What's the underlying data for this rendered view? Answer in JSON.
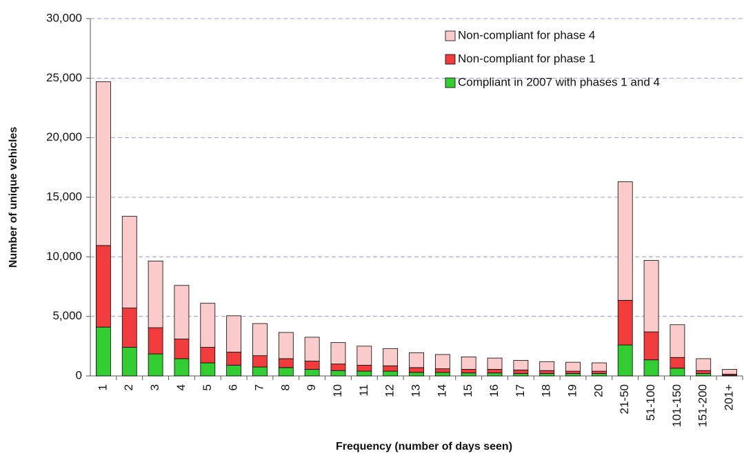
{
  "chart_data": {
    "type": "stacked_bar",
    "xlabel": "Frequency (number of days seen)",
    "ylabel": "Number of unique vehicles",
    "categories": [
      "1",
      "2",
      "3",
      "4",
      "5",
      "6",
      "7",
      "8",
      "9",
      "10",
      "11",
      "12",
      "13",
      "14",
      "15",
      "16",
      "17",
      "18",
      "19",
      "20",
      "21-50",
      "51-100",
      "101-150",
      "151-200",
      "201+"
    ],
    "series": [
      {
        "name": "Compliant in 2007 with phases 1 and 4",
        "color": "#33cc33",
        "values": [
          4100,
          2400,
          1850,
          1450,
          1100,
          900,
          750,
          700,
          550,
          450,
          400,
          400,
          300,
          300,
          250,
          250,
          200,
          200,
          200,
          200,
          2600,
          1350,
          650,
          200,
          50
        ]
      },
      {
        "name": "Non-compliant for phase 1",
        "color": "#f03c3c",
        "values": [
          6850,
          3300,
          2200,
          1650,
          1300,
          1100,
          950,
          750,
          700,
          550,
          500,
          450,
          400,
          300,
          300,
          300,
          300,
          250,
          200,
          200,
          3750,
          2350,
          900,
          250,
          100
        ]
      },
      {
        "name": "Non-compliant for phase 4",
        "color": "#fbcaca",
        "values": [
          13750,
          7700,
          5600,
          4500,
          3700,
          3050,
          2700,
          2200,
          2000,
          1800,
          1600,
          1450,
          1250,
          1200,
          1050,
          950,
          800,
          750,
          750,
          700,
          9950,
          6000,
          2750,
          1000,
          400
        ]
      }
    ],
    "ylim": [
      0,
      30000
    ],
    "yticks": [
      0,
      {
        "value": 5000,
        "label": "5,000"
      },
      {
        "value": 10000,
        "label": "10,000"
      },
      {
        "value": 15000,
        "label": "15,000"
      },
      {
        "value": 20000,
        "label": "20,000"
      },
      {
        "value": 25000,
        "label": "25,000"
      },
      {
        "value": 30000,
        "label": "30,000"
      }
    ],
    "grid": true,
    "legend": "upper right"
  }
}
